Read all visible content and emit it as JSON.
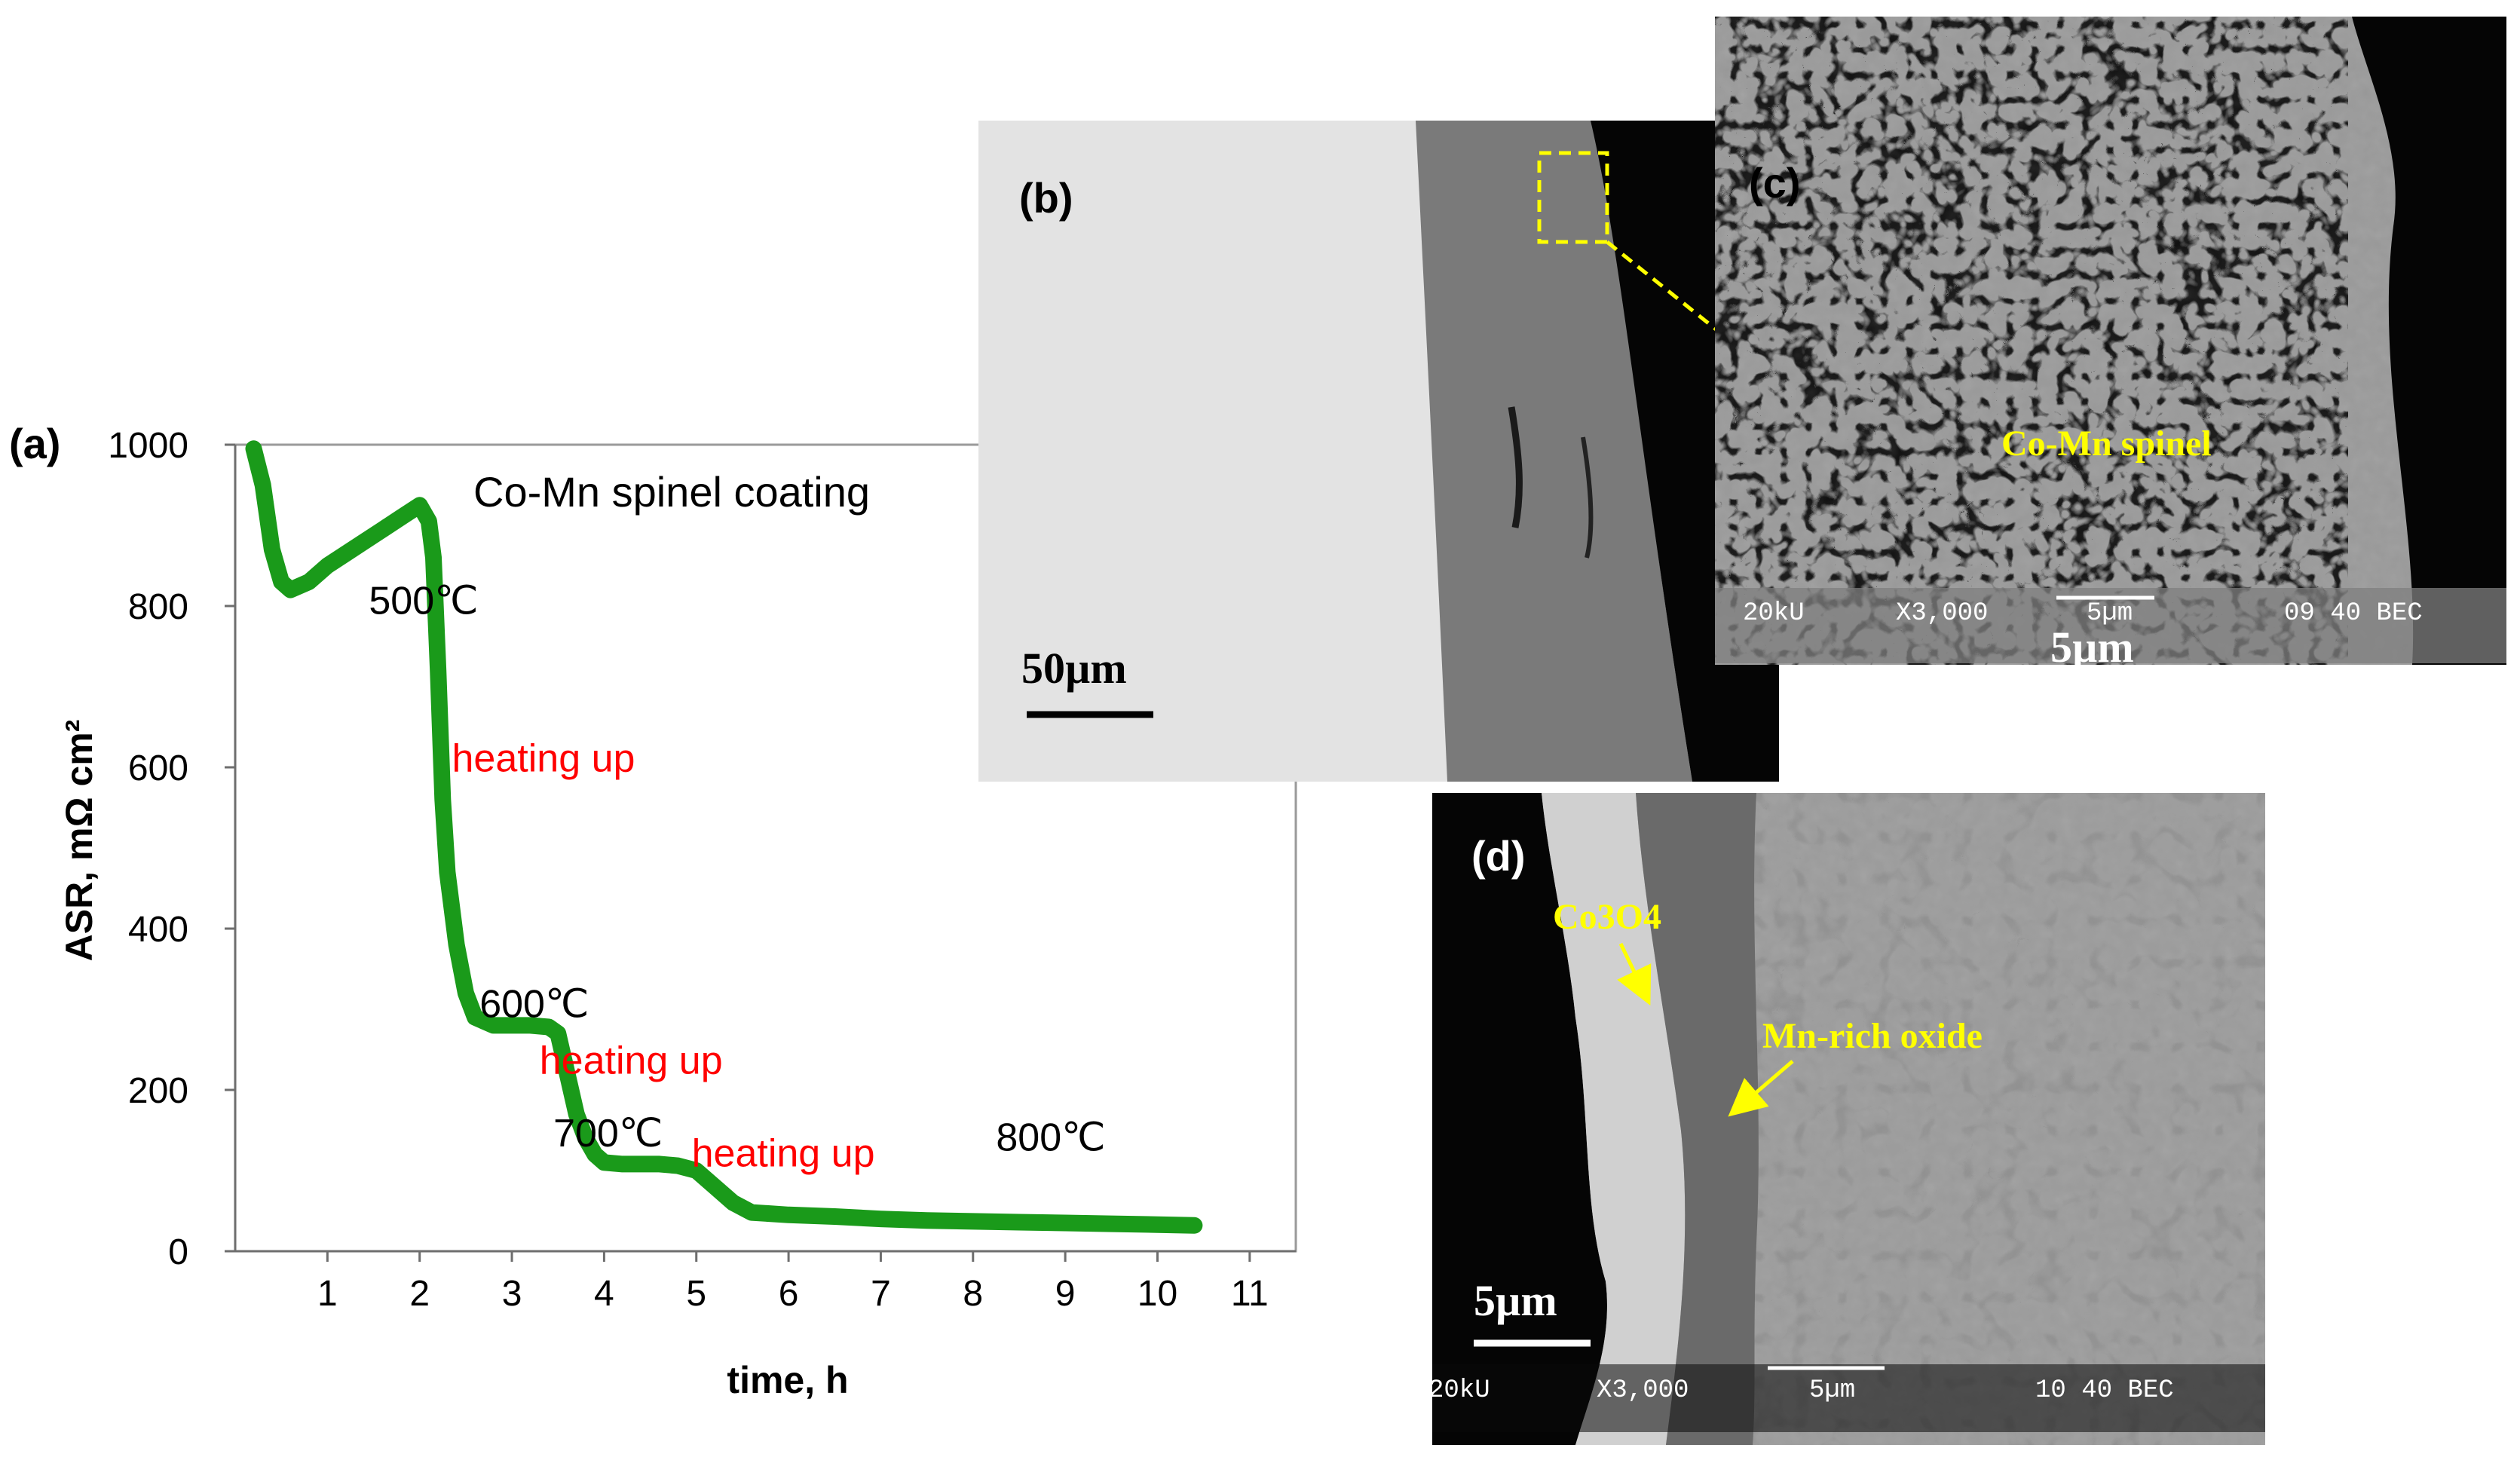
{
  "chart_data": {
    "type": "line",
    "panel_label": "(a)",
    "title": "",
    "xlabel": "time, h",
    "ylabel": "ASR, mΩ cm²",
    "xlim": [
      0,
      11.5
    ],
    "ylim": [
      0,
      1000
    ],
    "x_ticks": [
      "1",
      "2",
      "3",
      "4",
      "5",
      "6",
      "7",
      "8",
      "9",
      "10",
      "11"
    ],
    "y_ticks": [
      "0",
      "200",
      "400",
      "600",
      "800",
      "1000"
    ],
    "grid": false,
    "series": [
      {
        "name": "Co-Mn spinel coating",
        "color": "#1a9a1a",
        "x": [
          0.2,
          0.3,
          0.4,
          0.5,
          0.6,
          0.8,
          1.0,
          1.2,
          1.4,
          1.6,
          1.8,
          2.0,
          2.1,
          2.15,
          2.2,
          2.25,
          2.3,
          2.4,
          2.5,
          2.6,
          2.8,
          3.0,
          3.2,
          3.4,
          3.5,
          3.6,
          3.7,
          3.8,
          3.9,
          4.0,
          4.2,
          4.4,
          4.6,
          4.8,
          5.0,
          5.2,
          5.4,
          5.6,
          6.0,
          6.5,
          7.0,
          7.5,
          8.0,
          8.5,
          9.0,
          9.5,
          10.0,
          10.4
        ],
        "y": [
          995,
          950,
          870,
          830,
          820,
          830,
          850,
          865,
          880,
          895,
          910,
          925,
          905,
          860,
          720,
          560,
          470,
          380,
          320,
          290,
          280,
          280,
          280,
          278,
          270,
          220,
          170,
          140,
          120,
          110,
          108,
          108,
          108,
          106,
          100,
          80,
          60,
          48,
          45,
          43,
          40,
          38,
          37,
          36,
          35,
          34,
          33,
          32
        ]
      }
    ],
    "annotations": [
      {
        "text": "500℃",
        "x": 1.45,
        "y": 790,
        "color": "#000000"
      },
      {
        "text": "heating up",
        "x": 2.35,
        "y": 595,
        "color": "#ff0000"
      },
      {
        "text": "600℃",
        "x": 2.65,
        "y": 290,
        "color": "#000000"
      },
      {
        "text": "heating up",
        "x": 3.3,
        "y": 220,
        "color": "#ff0000"
      },
      {
        "text": "700℃",
        "x": 3.45,
        "y": 130,
        "color": "#000000"
      },
      {
        "text": "heating up",
        "x": 4.95,
        "y": 105,
        "color": "#ff0000"
      },
      {
        "text": "800℃",
        "x": 8.25,
        "y": 125,
        "color": "#000000"
      }
    ]
  },
  "micrographs": {
    "b": {
      "label": "(b)",
      "scale_bar": "50µm"
    },
    "c": {
      "label": "(c)",
      "annotation": "Co-Mn spinel",
      "info_bar": [
        "20kU",
        "X3,000",
        "5µm",
        "09 40 BEC"
      ],
      "scale_bar": "5µm"
    },
    "d": {
      "label": "(d)",
      "annotations": [
        "Co3O4",
        "Mn-rich oxide"
      ],
      "info_bar": [
        "20kU",
        "X3,000",
        "5µm",
        "10 40 BEC"
      ],
      "scale_bar": "5µm"
    }
  },
  "colors": {
    "curve": "#1a9a1a",
    "annotation_red": "#ff0000",
    "sem_label_yellow": "#ffff00"
  }
}
